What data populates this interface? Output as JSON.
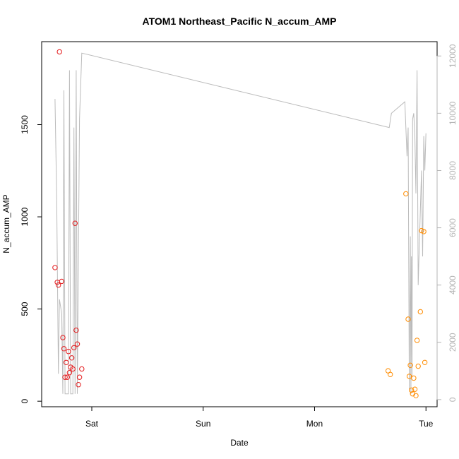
{
  "chart_data": {
    "type": "scatter",
    "title": "ATOM1 Northeast_Pacific N_accum_AMP",
    "xlabel": "Date",
    "ylabel": "N_accum_AMP",
    "x_ticks": [
      "Sat",
      "Sun",
      "Mon",
      "Tue"
    ],
    "x_tick_positions_days": [
      1,
      2,
      3,
      4
    ],
    "xlim_days": [
      0.55,
      4.1
    ],
    "ylim": [
      -30,
      1950
    ],
    "y_ticks": [
      0,
      500,
      1000,
      1500
    ],
    "y_right_ticks": [
      0,
      2000,
      4000,
      6000,
      8000,
      10000,
      12000
    ],
    "y_right_lim": [
      -250,
      12500
    ],
    "colors": {
      "series_1": "#e41a1c",
      "series_2": "#ff8c00",
      "line": "#bbbbbb",
      "right_axis": "#b4b4b4"
    },
    "series": [
      {
        "color_key": "series_1",
        "x": [
          0.67,
          0.69,
          0.7,
          0.71,
          0.73,
          0.74,
          0.75,
          0.76,
          0.77,
          0.78,
          0.79,
          0.8,
          0.81,
          0.82,
          0.83,
          0.84,
          0.85,
          0.86,
          0.87,
          0.88,
          0.89,
          0.91
        ],
        "y": [
          725,
          645,
          630,
          1895,
          650,
          345,
          285,
          130,
          210,
          130,
          270,
          155,
          185,
          235,
          175,
          290,
          965,
          385,
          310,
          90,
          130,
          175
        ]
      },
      {
        "color_key": "series_2",
        "x": [
          3.66,
          3.68,
          3.82,
          3.84,
          3.85,
          3.86,
          3.87,
          3.88,
          3.89,
          3.9,
          3.91,
          3.92,
          3.93,
          3.95,
          3.96,
          3.98,
          3.99
        ],
        "y": [
          165,
          145,
          1125,
          445,
          135,
          195,
          60,
          40,
          125,
          65,
          30,
          330,
          190,
          485,
          925,
          920,
          210
        ]
      }
    ],
    "line_series": {
      "x": [
        0.67,
        0.685,
        0.7,
        0.71,
        0.73,
        0.74,
        0.75,
        0.76,
        0.77,
        0.78,
        0.79,
        0.8,
        0.81,
        0.82,
        0.83,
        0.84,
        0.85,
        0.86,
        0.87,
        0.89,
        0.91,
        3.67,
        3.69,
        3.81,
        3.83,
        3.84,
        3.85,
        3.86,
        3.865,
        3.87,
        3.875,
        3.88,
        3.89,
        3.9,
        3.91,
        3.92,
        3.93,
        3.96,
        3.97,
        3.98,
        3.99,
        4.0
      ],
      "y": [
        10500,
        7000,
        900,
        3500,
        3000,
        200,
        10800,
        200,
        200,
        200,
        200,
        11500,
        200,
        200,
        200,
        9500,
        200,
        11500,
        200,
        9800,
        12100,
        9500,
        10000,
        10400,
        8500,
        9500,
        300,
        5700,
        200,
        5000,
        800,
        9800,
        10000,
        9200,
        7200,
        11500,
        4000,
        8000,
        5000,
        9200,
        8000,
        9300
      ]
    }
  }
}
